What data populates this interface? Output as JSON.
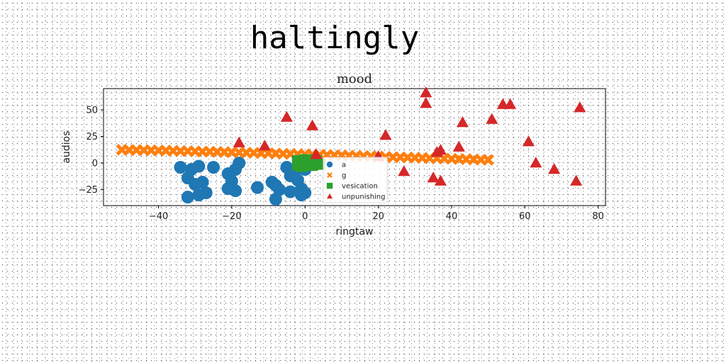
{
  "page": {
    "heading": "haltingly"
  },
  "chart_data": {
    "type": "scatter",
    "title": "mood",
    "xlabel": "ringtaw",
    "ylabel": "audios",
    "xlim": [
      -55,
      82
    ],
    "ylim": [
      -40,
      70
    ],
    "xticks": [
      -40,
      -20,
      0,
      20,
      40,
      60,
      80
    ],
    "yticks": [
      -25,
      0,
      25,
      50
    ],
    "grid": false,
    "legend": {
      "placement": "center-right"
    },
    "series": [
      {
        "name": "a",
        "marker": "circle",
        "color": "#1f77b4",
        "points": [
          [
            -34,
            -4
          ],
          [
            -31,
            -6
          ],
          [
            -29,
            -3
          ],
          [
            -32,
            -14
          ],
          [
            -30,
            -20
          ],
          [
            -28,
            -18
          ],
          [
            -27,
            -28
          ],
          [
            -29,
            -30
          ],
          [
            -32,
            -32
          ],
          [
            -25,
            -4
          ],
          [
            -21,
            -10
          ],
          [
            -20,
            -17
          ],
          [
            -19,
            -6
          ],
          [
            -18,
            0
          ],
          [
            -21,
            -24
          ],
          [
            -19,
            -26
          ],
          [
            -13,
            -23
          ],
          [
            -9,
            -18
          ],
          [
            -8,
            -21
          ],
          [
            -7,
            -25
          ],
          [
            -4,
            -12
          ],
          [
            -5,
            -4
          ],
          [
            -3,
            -10
          ],
          [
            -2,
            -16
          ],
          [
            -1,
            -24
          ],
          [
            0,
            -28
          ],
          [
            -1,
            -30
          ],
          [
            -8,
            -34
          ],
          [
            -4,
            -27
          ],
          [
            0,
            -6
          ]
        ]
      },
      {
        "name": "g",
        "marker": "x",
        "color": "#ff7f0e",
        "points": [
          [
            -50,
            12.5
          ],
          [
            -48,
            12.3
          ],
          [
            -46,
            12.2
          ],
          [
            -44,
            12.1
          ],
          [
            -42,
            12.0
          ],
          [
            -40,
            11.8
          ],
          [
            -38,
            11.7
          ],
          [
            -36,
            11.5
          ],
          [
            -34,
            11.3
          ],
          [
            -32,
            11.2
          ],
          [
            -30,
            11.0
          ],
          [
            -28,
            10.8
          ],
          [
            -26,
            10.7
          ],
          [
            -24,
            10.5
          ],
          [
            -22,
            10.3
          ],
          [
            -20,
            10.2
          ],
          [
            -18,
            10.0
          ],
          [
            -16,
            9.8
          ],
          [
            -14,
            9.6
          ],
          [
            -12,
            9.4
          ],
          [
            -10,
            9.2
          ],
          [
            -8,
            9.0
          ],
          [
            -6,
            8.8
          ],
          [
            -4,
            8.6
          ],
          [
            -2,
            8.4
          ],
          [
            0,
            8.2
          ],
          [
            2,
            8.0
          ],
          [
            4,
            7.8
          ],
          [
            6,
            7.6
          ],
          [
            8,
            7.4
          ],
          [
            10,
            7.2
          ],
          [
            12,
            7.0
          ],
          [
            14,
            6.8
          ],
          [
            16,
            6.6
          ],
          [
            18,
            6.4
          ],
          [
            20,
            6.2
          ],
          [
            22,
            5.8
          ],
          [
            24,
            5.6
          ],
          [
            26,
            5.4
          ],
          [
            28,
            5.2
          ],
          [
            30,
            5.0
          ],
          [
            32,
            4.8
          ],
          [
            34,
            4.6
          ],
          [
            36,
            4.4
          ],
          [
            38,
            4.2
          ],
          [
            40,
            4.0
          ],
          [
            42,
            3.8
          ],
          [
            44,
            3.6
          ],
          [
            46,
            3.4
          ],
          [
            48,
            3.2
          ],
          [
            50,
            3.0
          ]
        ]
      },
      {
        "name": "vesication",
        "marker": "square",
        "color": "#2ca02c",
        "points": [
          [
            -2,
            2
          ],
          [
            -1,
            0
          ],
          [
            0,
            1
          ],
          [
            1,
            -1
          ],
          [
            2,
            3
          ],
          [
            -2,
            -2
          ],
          [
            0,
            3
          ],
          [
            1,
            1
          ],
          [
            3,
            0
          ],
          [
            -1,
            2
          ],
          [
            2,
            -2
          ],
          [
            0,
            -1
          ],
          [
            3,
            2
          ],
          [
            -2,
            1
          ],
          [
            1,
            3
          ],
          [
            4,
            -1
          ],
          [
            2,
            1
          ],
          [
            -1,
            -3
          ]
        ]
      },
      {
        "name": "unpunishing",
        "marker": "triangle",
        "color": "#d62728",
        "points": [
          [
            -18,
            19
          ],
          [
            -11,
            16
          ],
          [
            -5,
            43
          ],
          [
            2,
            35
          ],
          [
            3,
            8
          ],
          [
            20,
            6
          ],
          [
            22,
            26
          ],
          [
            27,
            -8
          ],
          [
            33,
            66
          ],
          [
            33,
            56
          ],
          [
            35,
            -14
          ],
          [
            36,
            10
          ],
          [
            37,
            12
          ],
          [
            37,
            -17
          ],
          [
            42,
            15
          ],
          [
            43,
            38
          ],
          [
            51,
            41
          ],
          [
            54,
            55
          ],
          [
            56,
            55
          ],
          [
            61,
            20
          ],
          [
            63,
            0
          ],
          [
            68,
            -6
          ],
          [
            74,
            -17
          ],
          [
            75,
            52
          ]
        ]
      }
    ]
  }
}
